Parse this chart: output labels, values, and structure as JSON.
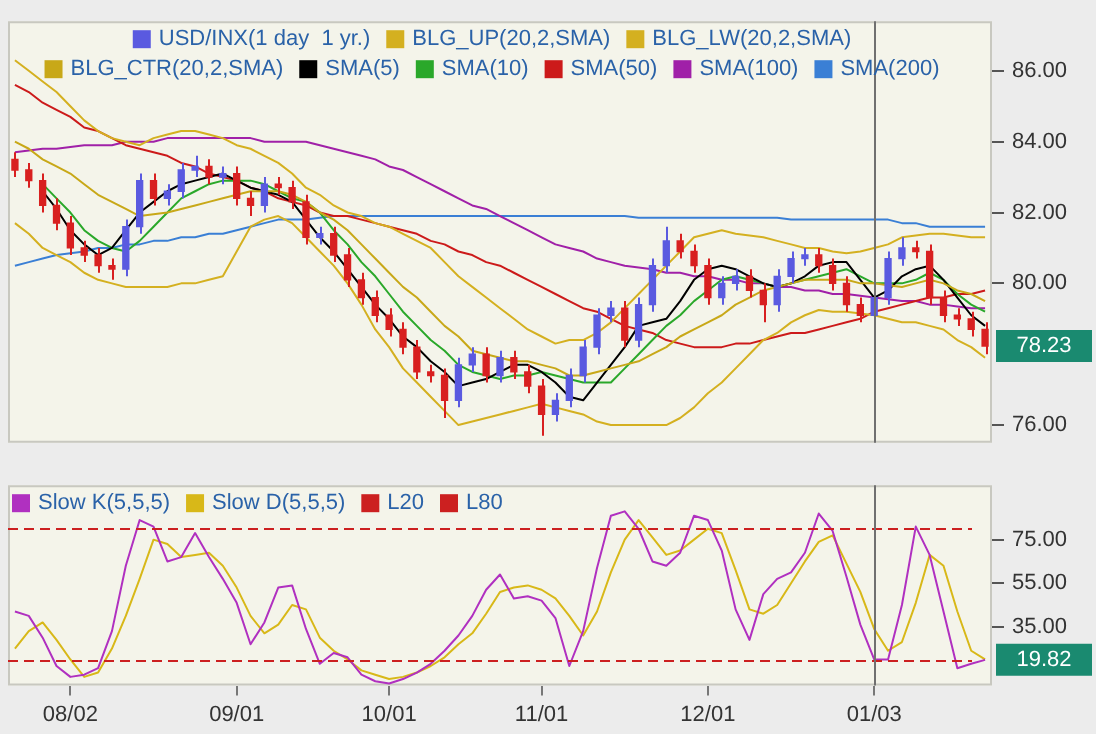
{
  "chart_data": [
    {
      "type": "candlestick",
      "legend": "top",
      "tick_labels": "y",
      "ylim": [
        75.5,
        87.4
      ],
      "yticks": [
        {
          "value": 76,
          "label": "76.00"
        },
        {
          "value": 80,
          "label": "80.00"
        },
        {
          "value": 82,
          "label": "82.00"
        },
        {
          "value": 84,
          "label": "84.00"
        },
        {
          "value": 86,
          "label": "86.00"
        }
      ],
      "categories": [
        null,
        null,
        null,
        null,
        "08/02",
        null,
        null,
        null,
        null,
        null,
        null,
        null,
        null,
        null,
        null,
        null,
        "09/01",
        null,
        null,
        null,
        null,
        null,
        null,
        null,
        null,
        null,
        null,
        "10/01",
        null,
        null,
        null,
        null,
        null,
        null,
        null,
        null,
        null,
        null,
        "11/01",
        null,
        null,
        null,
        null,
        null,
        null,
        null,
        null,
        null,
        null,
        null,
        "12/01",
        null,
        null,
        null,
        null,
        null,
        null,
        null,
        null,
        null,
        null,
        null,
        "01/03",
        null,
        null,
        null,
        null,
        null,
        null,
        null,
        null
      ],
      "series": [
        {
          "name": "USD/INX(1 day  1 yr.)",
          "color": "#5a5ae0",
          "colors": [
            "#d82020",
            "#d82020",
            "#d82020",
            "#d82020",
            "#d82020",
            "#d82020",
            "#d82020",
            "#d82020",
            "#5a5ae0",
            "#5a5ae0",
            "#d82020",
            "#5a5ae0",
            "#5a5ae0",
            "#5a5ae0",
            "#d82020",
            "#5a5ae0",
            "#d82020",
            "#d82020",
            "#5a5ae0",
            "#d82020",
            "#d82020",
            "#d82020",
            "#5a5ae0",
            "#d82020",
            "#d82020",
            "#d82020",
            "#d82020",
            "#d82020",
            "#d82020",
            "#d82020",
            "#d82020",
            "#d82020",
            "#5a5ae0",
            "#5a5ae0",
            "#d82020",
            "#5a5ae0",
            "#d82020",
            "#d82020",
            "#d82020",
            "#5a5ae0",
            "#5a5ae0",
            "#5a5ae0",
            "#5a5ae0",
            "#5a5ae0",
            "#d82020",
            "#5a5ae0",
            "#5a5ae0",
            "#5a5ae0",
            "#d82020",
            "#d82020",
            "#d82020",
            "#5a5ae0",
            "#5a5ae0",
            "#d82020",
            "#d82020",
            "#5a5ae0",
            "#5a5ae0",
            "#5a5ae0",
            "#d82020",
            "#d82020",
            "#d82020",
            "#d82020",
            "#5a5ae0",
            "#5a5ae0",
            "#5a5ae0",
            "#d82020",
            "#d82020",
            "#d82020",
            "#d82020",
            "#d82020",
            "#d82020"
          ],
          "ohlc": [
            [
              83.5,
              83.7,
              83.0,
              83.2
            ],
            [
              83.2,
              83.4,
              82.7,
              82.9
            ],
            [
              82.9,
              83.1,
              82.0,
              82.2
            ],
            [
              82.2,
              82.4,
              81.5,
              81.7
            ],
            [
              81.7,
              81.9,
              80.8,
              81.0
            ],
            [
              81.0,
              81.2,
              80.6,
              80.8
            ],
            [
              80.8,
              81.0,
              80.3,
              80.5
            ],
            [
              80.5,
              80.7,
              80.1,
              80.4
            ],
            [
              80.4,
              81.8,
              80.2,
              81.6
            ],
            [
              81.6,
              83.1,
              81.4,
              82.9
            ],
            [
              82.9,
              83.1,
              82.2,
              82.4
            ],
            [
              82.4,
              82.8,
              82.2,
              82.6
            ],
            [
              82.6,
              83.4,
              82.4,
              83.2
            ],
            [
              83.2,
              83.6,
              83.0,
              83.3
            ],
            [
              83.3,
              83.5,
              82.8,
              83.0
            ],
            [
              83.0,
              83.3,
              82.8,
              83.1
            ],
            [
              83.1,
              83.3,
              82.2,
              82.4
            ],
            [
              82.4,
              82.6,
              81.9,
              82.2
            ],
            [
              82.2,
              83.0,
              82.0,
              82.8
            ],
            [
              82.8,
              83.0,
              82.5,
              82.7
            ],
            [
              82.7,
              82.9,
              82.1,
              82.3
            ],
            [
              82.3,
              82.5,
              81.1,
              81.3
            ],
            [
              81.3,
              81.6,
              81.1,
              81.4
            ],
            [
              81.4,
              81.6,
              80.6,
              80.8
            ],
            [
              80.8,
              81.0,
              79.9,
              80.1
            ],
            [
              80.1,
              80.3,
              79.4,
              79.6
            ],
            [
              79.6,
              79.8,
              78.9,
              79.1
            ],
            [
              79.1,
              79.3,
              78.5,
              78.7
            ],
            [
              78.7,
              78.9,
              78.0,
              78.2
            ],
            [
              78.2,
              78.4,
              77.3,
              77.5
            ],
            [
              77.5,
              77.7,
              77.2,
              77.4
            ],
            [
              77.4,
              77.6,
              76.2,
              76.7
            ],
            [
              76.7,
              77.9,
              76.5,
              77.7
            ],
            [
              77.7,
              78.2,
              77.5,
              78.0
            ],
            [
              78.0,
              78.2,
              77.2,
              77.4
            ],
            [
              77.4,
              78.1,
              77.2,
              77.9
            ],
            [
              77.9,
              78.1,
              77.3,
              77.5
            ],
            [
              77.5,
              77.7,
              76.9,
              77.1
            ],
            [
              77.1,
              77.3,
              75.7,
              76.3
            ],
            [
              76.3,
              76.9,
              76.1,
              76.7
            ],
            [
              76.7,
              77.6,
              76.5,
              77.4
            ],
            [
              77.4,
              78.4,
              77.2,
              78.2
            ],
            [
              78.2,
              79.3,
              78.0,
              79.1
            ],
            [
              79.1,
              79.5,
              78.9,
              79.3
            ],
            [
              79.3,
              79.5,
              78.2,
              78.4
            ],
            [
              78.4,
              79.6,
              78.2,
              79.4
            ],
            [
              79.4,
              80.7,
              79.2,
              80.5
            ],
            [
              80.5,
              81.6,
              80.3,
              81.2
            ],
            [
              81.2,
              81.4,
              80.7,
              80.9
            ],
            [
              80.9,
              81.1,
              80.3,
              80.5
            ],
            [
              80.5,
              80.7,
              79.4,
              79.6
            ],
            [
              79.6,
              80.2,
              79.4,
              80.0
            ],
            [
              80.0,
              80.4,
              79.8,
              80.2
            ],
            [
              80.2,
              80.4,
              79.6,
              79.8
            ],
            [
              79.8,
              80.0,
              78.9,
              79.4
            ],
            [
              79.4,
              80.4,
              79.2,
              80.2
            ],
            [
              80.2,
              80.9,
              80.0,
              80.7
            ],
            [
              80.7,
              81.0,
              80.5,
              80.8
            ],
            [
              80.8,
              81.0,
              80.3,
              80.5
            ],
            [
              80.5,
              80.7,
              79.8,
              80.0
            ],
            [
              80.0,
              80.2,
              79.2,
              79.4
            ],
            [
              79.4,
              79.6,
              78.9,
              79.1
            ],
            [
              79.1,
              79.8,
              78.9,
              79.6
            ],
            [
              79.6,
              80.9,
              79.4,
              80.7
            ],
            [
              80.7,
              81.3,
              80.5,
              81.0
            ],
            [
              81.0,
              81.2,
              80.7,
              80.9
            ],
            [
              80.9,
              81.1,
              79.4,
              79.6
            ],
            [
              79.6,
              79.8,
              78.9,
              79.1
            ],
            [
              79.1,
              79.3,
              78.8,
              79.0
            ],
            [
              79.0,
              79.2,
              78.5,
              78.7
            ],
            [
              78.7,
              78.9,
              78.0,
              78.23
            ]
          ]
        },
        {
          "type": "line",
          "name": "BLG_UP(20,2,SMA)",
          "color": "#d4b020",
          "values": [
            86.3,
            86.0,
            85.7,
            85.4,
            85.0,
            84.6,
            84.3,
            84.1,
            84.0,
            83.9,
            84.1,
            84.2,
            84.3,
            84.3,
            84.2,
            84.1,
            83.9,
            83.8,
            83.6,
            83.4,
            83.1,
            82.7,
            82.5,
            82.2,
            82.0,
            81.9,
            81.7,
            81.6,
            81.4,
            81.2,
            81.0,
            80.6,
            80.2,
            79.9,
            79.6,
            79.3,
            79.0,
            78.7,
            78.5,
            78.3,
            78.4,
            78.4,
            78.6,
            78.9,
            79.3,
            79.7,
            80.1,
            80.5,
            80.9,
            81.3,
            81.4,
            81.5,
            81.4,
            81.35,
            81.3,
            81.2,
            81.1,
            81.0,
            81.0,
            80.9,
            80.85,
            80.9,
            81.0,
            81.1,
            81.3,
            81.35,
            81.4,
            81.4,
            81.35,
            81.3,
            81.3
          ]
        },
        {
          "type": "line",
          "name": "BLG_LW(20,2,SMA)",
          "color": "#d4b020",
          "values": [
            81.7,
            81.4,
            81.0,
            80.8,
            80.6,
            80.3,
            80.1,
            80.0,
            79.9,
            79.9,
            79.9,
            79.9,
            80.0,
            80.0,
            80.1,
            80.2,
            80.9,
            81.6,
            81.8,
            81.9,
            81.7,
            81.3,
            80.9,
            80.5,
            80.0,
            79.4,
            78.7,
            78.2,
            77.6,
            77.2,
            76.8,
            76.4,
            76.0,
            76.1,
            76.2,
            76.3,
            76.4,
            76.5,
            76.6,
            76.5,
            76.4,
            76.3,
            76.1,
            76.0,
            76.0,
            76.0,
            76.0,
            76.0,
            76.2,
            76.5,
            76.9,
            77.2,
            77.6,
            78.0,
            78.4,
            78.6,
            78.9,
            79.1,
            79.25,
            79.2,
            79.2,
            79.15,
            79.1,
            79.0,
            78.9,
            78.9,
            78.8,
            78.7,
            78.4,
            78.2,
            77.9
          ]
        },
        {
          "type": "line",
          "name": "BLG_CTR(20,2,SMA)",
          "color": "#c8a818",
          "values": [
            84.0,
            83.8,
            83.5,
            83.3,
            83.1,
            82.8,
            82.5,
            82.3,
            82.1,
            81.9,
            81.95,
            82.0,
            82.1,
            82.2,
            82.3,
            82.4,
            82.5,
            82.6,
            82.6,
            82.6,
            82.5,
            82.3,
            82.0,
            81.8,
            81.5,
            81.1,
            80.7,
            80.3,
            79.9,
            79.6,
            79.2,
            78.8,
            78.5,
            78.1,
            78.0,
            77.9,
            77.8,
            77.8,
            77.7,
            77.6,
            77.4,
            77.4,
            77.5,
            77.6,
            77.7,
            77.8,
            78.0,
            78.2,
            78.5,
            78.7,
            78.9,
            79.1,
            79.4,
            79.6,
            79.8,
            79.9,
            80.0,
            80.1,
            80.1,
            80.1,
            80.1,
            80.0,
            80.0,
            79.95,
            79.9,
            80.0,
            80.1,
            80.0,
            79.8,
            79.7,
            79.5
          ]
        },
        {
          "type": "line",
          "name": "SMA(5)",
          "color": "#000000",
          "values": [
            null,
            null,
            82.6,
            82.1,
            81.5,
            81.1,
            80.8,
            81.0,
            81.5,
            82.0,
            82.3,
            82.6,
            82.8,
            82.9,
            83.0,
            83.1,
            82.9,
            82.7,
            82.6,
            82.5,
            82.3,
            81.8,
            81.3,
            80.9,
            80.4,
            79.9,
            79.4,
            79.0,
            78.5,
            78.2,
            77.8,
            77.5,
            77.1,
            77.2,
            77.3,
            77.5,
            77.7,
            77.7,
            77.5,
            77.2,
            76.8,
            76.7,
            77.2,
            77.7,
            78.2,
            78.8,
            78.9,
            79.0,
            79.5,
            80.1,
            80.4,
            80.5,
            80.4,
            80.2,
            80.0,
            79.9,
            80.0,
            80.2,
            80.5,
            80.6,
            80.6,
            80.1,
            79.6,
            79.8,
            80.2,
            80.4,
            80.5,
            80.1,
            79.6,
            79.1,
            78.8
          ]
        },
        {
          "type": "line",
          "name": "SMA(10)",
          "color": "#2aa82a",
          "values": [
            null,
            null,
            82.8,
            82.4,
            82.0,
            81.5,
            81.2,
            81.0,
            80.9,
            81.2,
            81.6,
            82.0,
            82.4,
            82.6,
            82.8,
            82.9,
            82.9,
            82.9,
            82.8,
            82.6,
            82.4,
            82.3,
            82.0,
            81.5,
            81.1,
            80.6,
            80.2,
            79.7,
            79.2,
            78.8,
            78.4,
            78.1,
            77.7,
            77.5,
            77.4,
            77.3,
            77.4,
            77.4,
            77.5,
            77.4,
            77.3,
            77.2,
            77.2,
            77.2,
            77.6,
            78.0,
            78.4,
            78.8,
            79.1,
            79.5,
            79.8,
            80.1,
            80.2,
            80.1,
            80.0,
            79.9,
            80.0,
            80.1,
            80.2,
            80.3,
            80.4,
            80.2,
            80.0,
            80.0,
            80.0,
            80.1,
            80.3,
            80.1,
            79.7,
            79.4,
            79.2
          ]
        },
        {
          "type": "line",
          "name": "SMA(50)",
          "color": "#cc1a1a",
          "values": [
            85.6,
            85.4,
            85.1,
            84.9,
            84.7,
            84.4,
            84.3,
            84.1,
            83.9,
            83.8,
            83.7,
            83.6,
            83.4,
            83.3,
            83.1,
            83.0,
            82.9,
            82.7,
            82.6,
            82.4,
            82.3,
            82.2,
            82.0,
            81.9,
            81.9,
            81.8,
            81.7,
            81.6,
            81.5,
            81.4,
            81.2,
            81.1,
            80.9,
            80.8,
            80.6,
            80.5,
            80.3,
            80.1,
            79.9,
            79.7,
            79.5,
            79.3,
            79.2,
            79.0,
            78.8,
            78.7,
            78.6,
            78.4,
            78.3,
            78.2,
            78.2,
            78.2,
            78.3,
            78.3,
            78.4,
            78.5,
            78.6,
            78.6,
            78.7,
            78.8,
            78.9,
            79.0,
            79.2,
            79.3,
            79.4,
            79.5,
            79.6,
            79.6,
            79.7,
            79.7,
            79.8
          ]
        },
        {
          "type": "line",
          "name": "SMA(100)",
          "color": "#a020a8",
          "values": [
            83.7,
            83.75,
            83.8,
            83.8,
            83.85,
            83.9,
            83.9,
            83.9,
            84.0,
            84.0,
            84.0,
            84.1,
            84.1,
            84.1,
            84.1,
            84.1,
            84.1,
            84.1,
            84.0,
            84.0,
            84.0,
            84.0,
            83.9,
            83.8,
            83.7,
            83.6,
            83.5,
            83.3,
            83.2,
            83.0,
            82.8,
            82.6,
            82.4,
            82.2,
            82.1,
            81.9,
            81.7,
            81.5,
            81.3,
            81.1,
            81.0,
            80.9,
            80.7,
            80.6,
            80.5,
            80.45,
            80.4,
            80.3,
            80.3,
            80.2,
            80.2,
            80.1,
            80.1,
            80.0,
            80.0,
            79.9,
            79.9,
            79.8,
            79.8,
            79.7,
            79.7,
            79.65,
            79.6,
            79.55,
            79.5,
            79.5,
            79.4,
            79.4,
            79.35,
            79.3,
            79.3
          ]
        },
        {
          "type": "line",
          "name": "SMA(200)",
          "color": "#3a7fd5",
          "values": [
            80.5,
            80.6,
            80.7,
            80.8,
            80.85,
            80.9,
            81.0,
            81.0,
            81.1,
            81.1,
            81.2,
            81.2,
            81.3,
            81.3,
            81.4,
            81.4,
            81.5,
            81.6,
            81.7,
            81.8,
            81.8,
            81.8,
            81.85,
            81.9,
            81.9,
            81.9,
            81.9,
            81.9,
            81.9,
            81.9,
            81.9,
            81.9,
            81.9,
            81.9,
            81.9,
            81.9,
            81.9,
            81.9,
            81.9,
            81.9,
            81.9,
            81.9,
            81.9,
            81.9,
            81.9,
            81.85,
            81.85,
            81.85,
            81.85,
            81.85,
            81.85,
            81.85,
            81.85,
            81.85,
            81.85,
            81.85,
            81.8,
            81.8,
            81.8,
            81.8,
            81.8,
            81.8,
            81.8,
            81.8,
            81.7,
            81.7,
            81.6,
            81.6,
            81.6,
            81.6,
            81.6
          ]
        }
      ],
      "ref_lines": [
        {
          "axis": "x",
          "value": "01/03",
          "color": "#707070"
        }
      ],
      "annotations": [
        "78.23"
      ]
    },
    {
      "type": "line",
      "legend": "top left",
      "ylim": [
        8,
        100
      ],
      "categories": [
        null,
        null,
        null,
        null,
        "08/02",
        null,
        null,
        null,
        null,
        null,
        null,
        null,
        null,
        null,
        null,
        null,
        "09/01",
        null,
        null,
        null,
        null,
        null,
        null,
        null,
        null,
        null,
        null,
        "10/01",
        null,
        null,
        null,
        null,
        null,
        null,
        null,
        null,
        null,
        null,
        "11/01",
        null,
        null,
        null,
        null,
        null,
        null,
        null,
        null,
        null,
        null,
        null,
        "12/01",
        null,
        null,
        null,
        null,
        null,
        null,
        null,
        null,
        null,
        null,
        null,
        "01/03",
        null,
        null,
        null,
        null,
        null,
        null,
        null,
        null
      ],
      "yticks": [
        {
          "value": 35,
          "label": "35.00"
        },
        {
          "value": 55,
          "label": "55.00"
        },
        {
          "value": 75,
          "label": "75.00"
        }
      ],
      "series": [
        {
          "name": "Slow K(5,5,5)",
          "color": "#b030c0",
          "values": [
            42,
            40,
            30,
            17,
            12,
            13,
            16,
            33,
            63,
            84,
            81,
            65,
            67,
            78,
            67,
            57,
            46,
            27,
            37,
            53,
            54,
            34,
            18,
            23,
            21,
            13,
            10,
            9,
            11,
            14,
            18,
            24,
            31,
            40,
            52,
            59,
            48,
            49,
            47,
            39,
            17,
            33,
            62,
            86,
            88,
            80,
            65,
            63,
            69,
            86,
            84,
            70,
            43,
            29,
            50,
            57,
            60,
            69,
            87,
            79,
            58,
            36,
            20,
            20,
            45,
            81,
            68,
            42,
            16,
            18,
            19.82
          ]
        },
        {
          "name": "Slow D(5,5,5)",
          "color": "#d8b818",
          "values": [
            25,
            33,
            37,
            29,
            20,
            12,
            14,
            25,
            40,
            57,
            75,
            73,
            67,
            68,
            69,
            63,
            53,
            40,
            32,
            36,
            45,
            43,
            30,
            24,
            20,
            15,
            13,
            11,
            12,
            14,
            17,
            21,
            27,
            32,
            41,
            51,
            53,
            54,
            52,
            48,
            40,
            31,
            42,
            60,
            75,
            84,
            76,
            68,
            70,
            75,
            80,
            78,
            61,
            43,
            41,
            45,
            55,
            65,
            74,
            77,
            64,
            51,
            34,
            24,
            28,
            46,
            68,
            63,
            42,
            24,
            20
          ]
        }
      ],
      "ref_lines": [
        {
          "axis": "y",
          "value": 20,
          "label": "L20",
          "color": "#cc2020",
          "line_style": "dashed"
        },
        {
          "axis": "y",
          "value": 80,
          "label": "L80",
          "color": "#cc2020",
          "line_style": "dashed"
        },
        {
          "axis": "x",
          "value": "01/03",
          "color": "#707070"
        }
      ],
      "annotations": [
        "19.82"
      ]
    }
  ]
}
